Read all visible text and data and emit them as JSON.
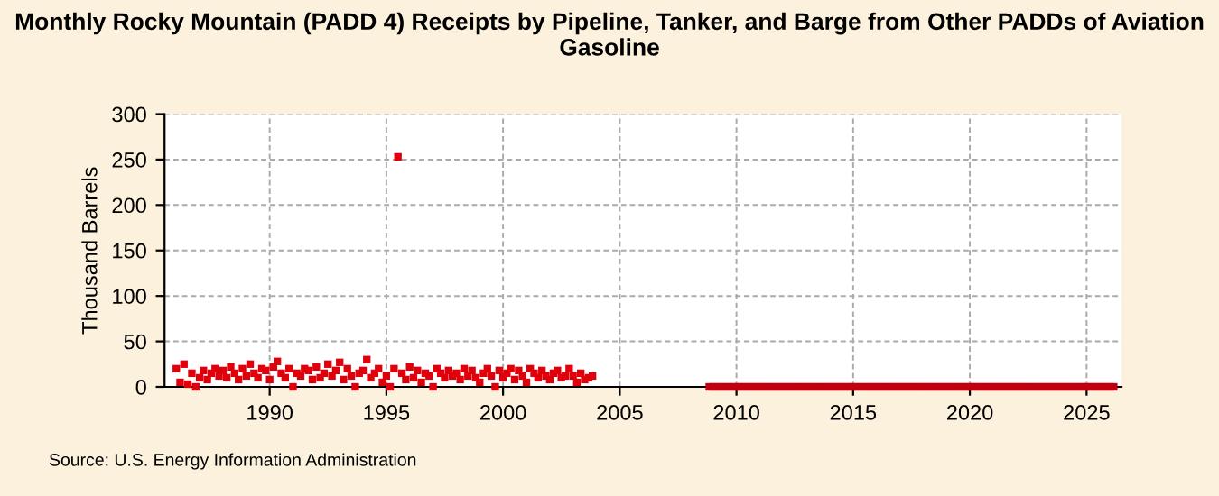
{
  "chart_data": {
    "type": "scatter",
    "title": "Monthly Rocky Mountain (PADD 4) Receipts by Pipeline, Tanker, and Barge from Other PADDs of Aviation Gasoline",
    "ylabel": "Thousand Barrels",
    "annotations": [
      "Source: U.S. Energy Information Administration"
    ],
    "series": [
      {
        "color": "#e0000b",
        "x": [
          "1986-01",
          "1986-03",
          "1986-05",
          "1986-07",
          "1986-09",
          "1986-11",
          "1987-01",
          "1987-03",
          "1987-05",
          "1987-07",
          "1987-09",
          "1987-11",
          "1988-01",
          "1988-03",
          "1988-05",
          "1988-07",
          "1988-09",
          "1988-11",
          "1989-01",
          "1989-03",
          "1989-05",
          "1989-07",
          "1989-09",
          "1989-11",
          "1990-01",
          "1990-03",
          "1990-05",
          "1990-07",
          "1990-09",
          "1990-11",
          "1991-01",
          "1991-03",
          "1991-05",
          "1991-07",
          "1991-09",
          "1991-11",
          "1992-01",
          "1992-03",
          "1992-05",
          "1992-07",
          "1992-09",
          "1992-11",
          "1993-01",
          "1993-03",
          "1993-05",
          "1993-07",
          "1993-09",
          "1993-11",
          "1994-01",
          "1994-03",
          "1994-05",
          "1994-07",
          "1994-09",
          "1994-11",
          "1995-01",
          "1995-03",
          "1995-05",
          "1995-07",
          "1995-09",
          "1995-11",
          "1996-01",
          "1996-03",
          "1996-05",
          "1996-07",
          "1996-09",
          "1996-11",
          "1997-01",
          "1997-03",
          "1997-05",
          "1997-07",
          "1997-09",
          "1997-11",
          "1998-01",
          "1998-03",
          "1998-05",
          "1998-07",
          "1998-09",
          "1998-11",
          "1999-01",
          "1999-03",
          "1999-05",
          "1999-07",
          "1999-09",
          "1999-11",
          "2000-01",
          "2000-03",
          "2000-05",
          "2000-07",
          "2000-09",
          "2000-11",
          "2001-01",
          "2001-03",
          "2001-05",
          "2001-07",
          "2001-09",
          "2001-11",
          "2002-01",
          "2002-03",
          "2002-05",
          "2002-07",
          "2002-09",
          "2002-11",
          "2003-01",
          "2003-03",
          "2003-05",
          "2003-07",
          "2003-09",
          "2003-11"
        ],
        "values": [
          20,
          5,
          25,
          3,
          15,
          0,
          10,
          18,
          8,
          15,
          20,
          12,
          18,
          10,
          22,
          15,
          8,
          20,
          12,
          25,
          15,
          10,
          20,
          18,
          8,
          22,
          28,
          15,
          10,
          20,
          0,
          15,
          12,
          20,
          18,
          8,
          22,
          10,
          15,
          25,
          12,
          18,
          27,
          8,
          20,
          12,
          0,
          15,
          18,
          30,
          10,
          15,
          20,
          5,
          12,
          0,
          20,
          253,
          15,
          8,
          22,
          10,
          18,
          5,
          15,
          12,
          0,
          20,
          15,
          10,
          18,
          12,
          15,
          8,
          20,
          12,
          18,
          10,
          5,
          15,
          20,
          12,
          0,
          18,
          10,
          15,
          20,
          8,
          18,
          12,
          5,
          20,
          15,
          10,
          18,
          12,
          8,
          15,
          18,
          10,
          12,
          20,
          12,
          5,
          15,
          8,
          10,
          12
        ]
      },
      {
        "color": "#c00010",
        "x": [
          "2008-11",
          "2009-01",
          "2009-03",
          "2009-05",
          "2009-07",
          "2009-09",
          "2009-11",
          "2010-01",
          "2010-03",
          "2010-05",
          "2010-07",
          "2010-09",
          "2010-11",
          "2011-01",
          "2011-03",
          "2011-05",
          "2011-07",
          "2011-09",
          "2011-11",
          "2012-01",
          "2012-03",
          "2012-05",
          "2012-07",
          "2012-09",
          "2012-11",
          "2013-01",
          "2013-03",
          "2013-05",
          "2013-07",
          "2013-09",
          "2013-11",
          "2014-01",
          "2014-03",
          "2014-05",
          "2014-07",
          "2014-09",
          "2014-11",
          "2015-01",
          "2015-03",
          "2015-05",
          "2015-07",
          "2015-09",
          "2015-11",
          "2016-01",
          "2016-03",
          "2016-05",
          "2016-07",
          "2016-09",
          "2016-11",
          "2017-01",
          "2017-03",
          "2017-05",
          "2017-07",
          "2017-09",
          "2017-11",
          "2018-01",
          "2018-03",
          "2018-05",
          "2018-07",
          "2018-09",
          "2018-11",
          "2019-01",
          "2019-03",
          "2019-05",
          "2019-07",
          "2019-09",
          "2019-11",
          "2020-01",
          "2020-03",
          "2020-05",
          "2020-07",
          "2020-09",
          "2020-11",
          "2021-01",
          "2021-03",
          "2021-05",
          "2021-07",
          "2021-09",
          "2021-11",
          "2022-01",
          "2022-03",
          "2022-05",
          "2022-07",
          "2022-09",
          "2022-11",
          "2023-01",
          "2023-03",
          "2023-05",
          "2023-07",
          "2023-09",
          "2023-11",
          "2024-01",
          "2024-03",
          "2024-05",
          "2024-07",
          "2024-09",
          "2024-11",
          "2025-01",
          "2025-03",
          "2025-05",
          "2025-07",
          "2025-09",
          "2025-11",
          "2026-01",
          "2026-03"
        ],
        "values": [
          0,
          0,
          0,
          0,
          0,
          0,
          0,
          0,
          0,
          0,
          0,
          0,
          0,
          0,
          0,
          0,
          0,
          0,
          0,
          0,
          0,
          0,
          0,
          0,
          0,
          0,
          0,
          0,
          0,
          0,
          0,
          0,
          0,
          0,
          0,
          0,
          0,
          0,
          0,
          0,
          0,
          0,
          0,
          0,
          0,
          0,
          0,
          0,
          0,
          0,
          0,
          0,
          0,
          0,
          0,
          0,
          0,
          0,
          0,
          0,
          0,
          0,
          0,
          0,
          0,
          0,
          0,
          0,
          0,
          0,
          0,
          0,
          0,
          0,
          0,
          0,
          0,
          0,
          0,
          0,
          0,
          0,
          0,
          0,
          0,
          0,
          0,
          0,
          0,
          0,
          0,
          0,
          0,
          0,
          0,
          0,
          0,
          0,
          0,
          0,
          0,
          0,
          0,
          0,
          0
        ]
      }
    ],
    "xlim": [
      "1985-07",
      "2026-07"
    ],
    "xticks": [
      {
        "value": "1990",
        "label": "1990"
      },
      {
        "value": "1995",
        "label": "1995"
      },
      {
        "value": "2000",
        "label": "2000"
      },
      {
        "value": "2005",
        "label": "2005"
      },
      {
        "value": "2010",
        "label": "2010"
      },
      {
        "value": "2015",
        "label": "2015"
      },
      {
        "value": "2020",
        "label": "2020"
      },
      {
        "value": "2025",
        "label": "2025"
      }
    ],
    "ylim": [
      0,
      300
    ],
    "yticks": [
      0,
      50,
      100,
      150,
      200,
      250,
      300
    ],
    "grid": true,
    "marker": "square"
  }
}
